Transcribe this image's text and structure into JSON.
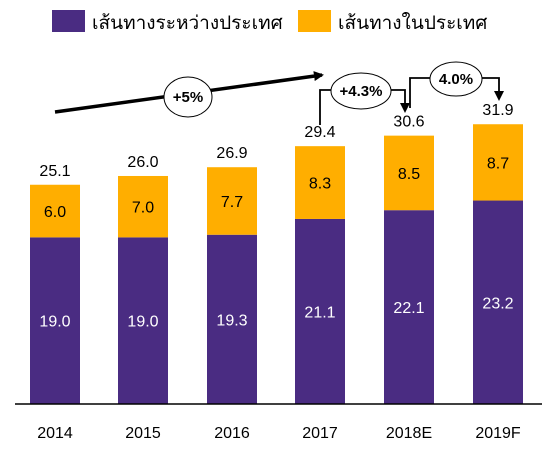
{
  "colors": {
    "international": "#4a2c82",
    "domestic": "#ffae00",
    "axis": "#000000"
  },
  "chart_data": {
    "type": "bar",
    "stacked": true,
    "categories": [
      "2014",
      "2015",
      "2016",
      "2017",
      "2018E",
      "2019F"
    ],
    "series": [
      {
        "name": "เส้นทางระหว่างประเทศ",
        "values": [
          19.0,
          19.0,
          19.3,
          21.1,
          22.1,
          23.2
        ],
        "labels": [
          "19.0",
          "19.0",
          "19.3",
          "21.1",
          "22.1",
          "23.2"
        ]
      },
      {
        "name": "เส้นทางในประเทศ",
        "values": [
          6.0,
          7.0,
          7.7,
          8.3,
          8.5,
          8.7
        ],
        "labels": [
          "6.0",
          "7.0",
          "7.7",
          "8.3",
          "8.5",
          "8.7"
        ]
      }
    ],
    "totals": [
      "25.1",
      "26.0",
      "26.9",
      "29.4",
      "30.6",
      "31.9"
    ],
    "ylim": [
      0,
      35
    ],
    "legend": {
      "placement": "top"
    },
    "annotations": {
      "trend": {
        "label": "+5%",
        "from": "2014",
        "to": "2017"
      },
      "steps": [
        {
          "label": "+4.3%",
          "from": "2017",
          "to": "2018E"
        },
        {
          "label": "4.0%",
          "from": "2018E",
          "to": "2019F"
        }
      ]
    }
  }
}
